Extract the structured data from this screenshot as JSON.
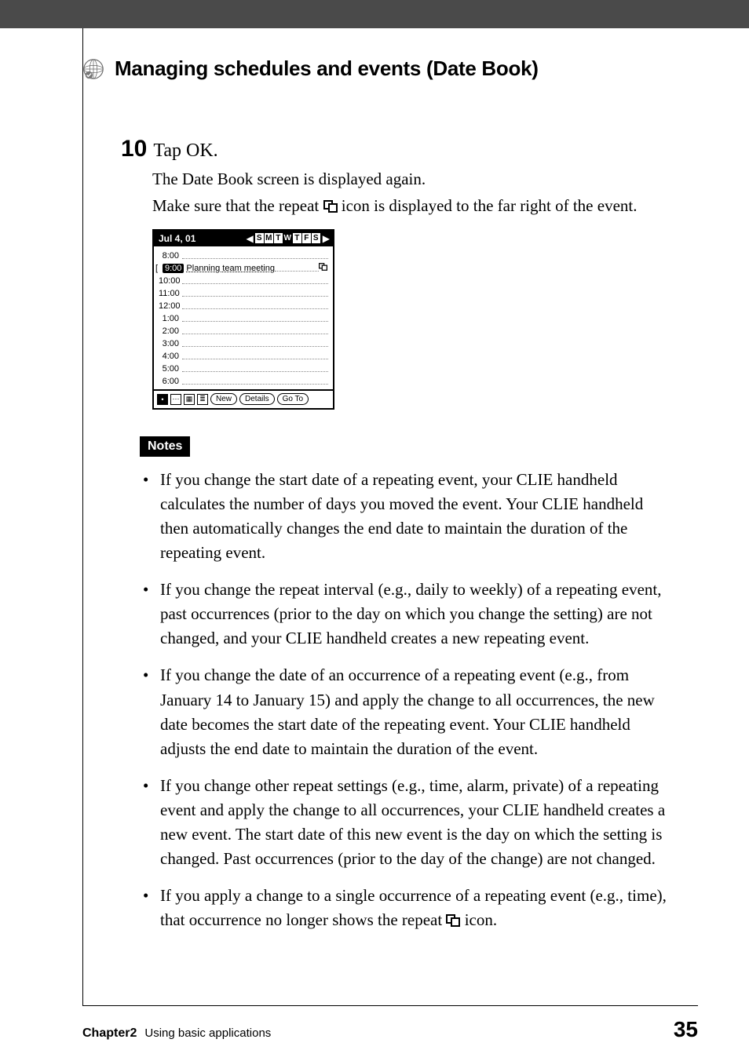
{
  "header": {
    "title": "Managing schedules and events (Date Book)"
  },
  "step": {
    "number": "10",
    "action": "Tap OK.",
    "line1": "The Date Book screen is displayed again.",
    "line2_a": "Make sure that the repeat ",
    "line2_b": " icon is displayed to the far right of the event."
  },
  "datebook": {
    "date": "Jul 4, 01",
    "days": [
      "S",
      "M",
      "T",
      "W",
      "T",
      "F",
      "S"
    ],
    "selected_day_index": 3,
    "rows": [
      {
        "time": "8:00"
      },
      {
        "time": "9:00",
        "selected": true,
        "event": "Planning team meeting",
        "repeat": true
      },
      {
        "time": "10:00"
      },
      {
        "time": "11:00"
      },
      {
        "time": "12:00"
      },
      {
        "time": "1:00"
      },
      {
        "time": "2:00"
      },
      {
        "time": "3:00"
      },
      {
        "time": "4:00"
      },
      {
        "time": "5:00"
      },
      {
        "time": "6:00"
      }
    ],
    "buttons": [
      "New",
      "Details",
      "Go To"
    ]
  },
  "notes": {
    "badge": "Notes",
    "items": [
      "If you change the start date of a repeating event, your CLIE handheld calculates the number of days you moved the event. Your CLIE handheld then automatically changes the end date to maintain the duration of the repeating event.",
      "If you change the repeat interval (e.g., daily to weekly) of a repeating event, past occurrences (prior to the day on which you change the setting) are not changed, and your CLIE handheld creates a new repeating event.",
      "If you change the date of an occurrence of a repeating event (e.g., from January 14 to January 15) and apply the change to all occurrences, the new date becomes the start date of the repeating event. Your CLIE handheld adjusts the end date to maintain the duration of the event.",
      "If you change other repeat settings (e.g., time, alarm, private) of a repeating event and apply the change to all occurrences, your CLIE handheld creates a new event. The start date of this new event is the day on which the setting is changed. Past occurrences (prior to the day of the change) are not changed."
    ],
    "last_item_a": "If you apply a change to a single occurrence of a repeating event (e.g., time), that occurrence no longer shows the repeat ",
    "last_item_b": " icon."
  },
  "footer": {
    "chapter": "Chapter2",
    "subtitle": "Using basic applications",
    "page": "35"
  },
  "colors": {
    "topbar": "#4a4a4a",
    "text": "#000000",
    "bg": "#ffffff"
  }
}
